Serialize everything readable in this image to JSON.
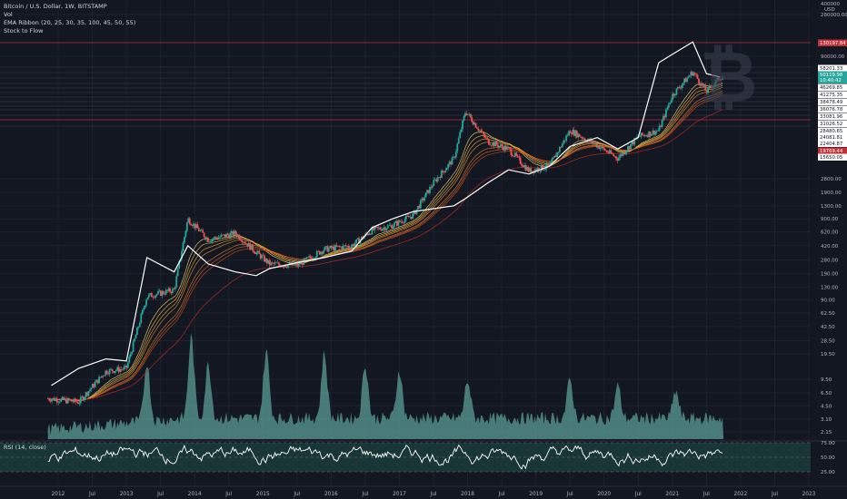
{
  "header": {
    "symbol_line": "Bitcoin / U.S. Dollar, 1W, BITSTAMP",
    "indicator_vol": "Vol",
    "indicator_ema": "EMA Ribbon (20, 25, 30, 35, 100, 45, 50, 55)",
    "indicator_s2f": "Stock to Flow"
  },
  "price_axis": {
    "unit": "USD",
    "top_label": "400000",
    "ticks": [
      "280000.00",
      "90000.00",
      "2800.00",
      "1900.00",
      "1300.00",
      "900.00",
      "620.00",
      "420.00",
      "280.00",
      "190.00",
      "130.00",
      "90.00",
      "62.50",
      "42.50",
      "28.50",
      "19.50",
      "9.50",
      "6.50",
      "4.50",
      "3.10",
      "2.15"
    ]
  },
  "level_labels": [
    {
      "text": "130197.84",
      "kind": "red"
    },
    {
      "text": "58201.33",
      "kind": "plain"
    },
    {
      "text": "50119.98",
      "kind": "teal"
    },
    {
      "text": "10:40:42",
      "kind": "teal"
    },
    {
      "text": "46269.85",
      "kind": "plain"
    },
    {
      "text": "41275.35",
      "kind": "plain"
    },
    {
      "text": "38478.49",
      "kind": "plain"
    },
    {
      "text": "36076.78",
      "kind": "plain"
    },
    {
      "text": "33081.96",
      "kind": "plain"
    },
    {
      "text": "31026.52",
      "kind": "plain"
    },
    {
      "text": "28480.65",
      "kind": "plain"
    },
    {
      "text": "24081.81",
      "kind": "plain"
    },
    {
      "text": "22404.87",
      "kind": "plain"
    },
    {
      "text": "19769.44",
      "kind": "red"
    },
    {
      "text": "15650.05",
      "kind": "plain"
    }
  ],
  "rsi": {
    "label": "RSI (14, close)",
    "ticks": [
      "75.00",
      "50.00",
      "25.00"
    ]
  },
  "time_axis": [
    "2012",
    "Jul",
    "2013",
    "Jul",
    "2014",
    "Jul",
    "2015",
    "Jul",
    "2016",
    "Jul",
    "2017",
    "Jul",
    "2018",
    "Jul",
    "2019",
    "Jul",
    "2020",
    "Jul",
    "2021",
    "Jul",
    "2022",
    "Jul",
    "2023"
  ],
  "colors": {
    "background": "#131722",
    "up": "#26a69a",
    "down": "#ef5350",
    "s2f": "#ffffff",
    "volume": "#5b9e96",
    "rsi_band": "#1b3a3a",
    "red_level": "#c2303a",
    "teal_level": "#26a69a"
  },
  "chart_data": {
    "type": "line",
    "title": "Bitcoin / U.S. Dollar, 1W, BITSTAMP",
    "y_scale": "log",
    "x": [
      2011.9,
      2012.3,
      2012.7,
      2013.0,
      2013.3,
      2013.7,
      2013.9,
      2014.2,
      2014.6,
      2014.9,
      2015.1,
      2015.5,
      2015.9,
      2016.3,
      2016.6,
      2016.9,
      2017.2,
      2017.5,
      2017.8,
      2017.97,
      2018.3,
      2018.6,
      2018.9,
      2019.2,
      2019.5,
      2019.9,
      2020.2,
      2020.5,
      2020.8,
      2021.0,
      2021.3,
      2021.5,
      2021.7
    ],
    "series": [
      {
        "name": "Stock to Flow",
        "values": [
          8,
          13,
          17,
          16,
          300,
          200,
          420,
          250,
          200,
          180,
          220,
          260,
          300,
          360,
          700,
          900,
          1100,
          1200,
          1300,
          1600,
          2500,
          3600,
          3200,
          4000,
          7000,
          9000,
          6500,
          9000,
          75000,
          95000,
          135000,
          55000,
          50000
        ]
      }
    ],
    "price_close": [
      5.5,
      5,
      12,
      13,
      100,
      120,
      900,
      500,
      600,
      350,
      250,
      240,
      380,
      420,
      650,
      750,
      1000,
      2500,
      5000,
      19000,
      8000,
      6500,
      3500,
      4000,
      11000,
      7200,
      5000,
      9200,
      11000,
      30000,
      58000,
      33000,
      50000
    ]
  }
}
